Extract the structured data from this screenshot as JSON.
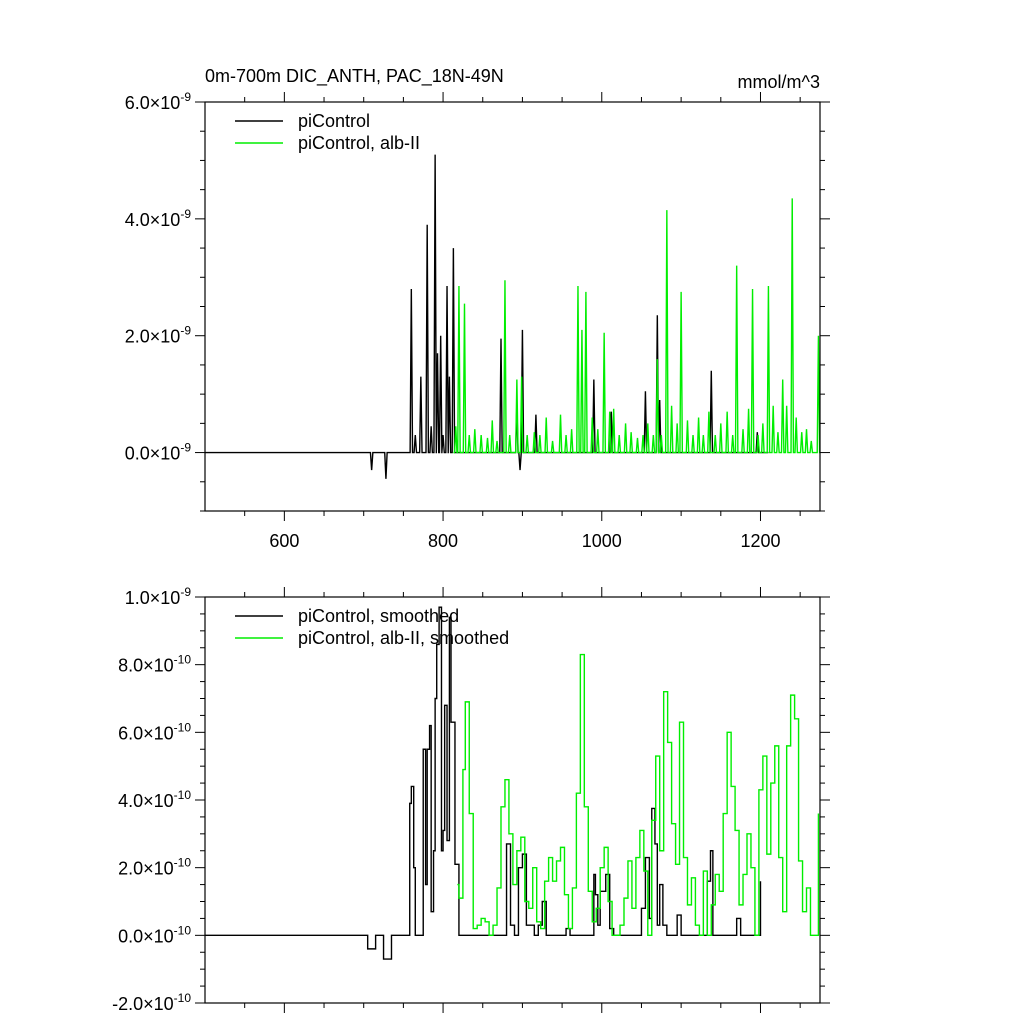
{
  "chart_data": [
    {
      "type": "line",
      "title": "0m-700m DIC_ANTH, PAC_18N-49N",
      "units": "mmol/m^3",
      "xlim": [
        500,
        1275
      ],
      "ylim": [
        -1e-09,
        6e-09
      ],
      "x_ticks": [
        600,
        800,
        1000,
        1200
      ],
      "x_tick_labels": [
        "600",
        "800",
        "1000",
        "1200"
      ],
      "y_tick_labels": [
        {
          "value": 6e-09,
          "mantissa": "6.0",
          "exponent": "-9"
        },
        {
          "value": 4e-09,
          "mantissa": "4.0",
          "exponent": "-9"
        },
        {
          "value": 2e-09,
          "mantissa": "2.0",
          "exponent": "-9"
        },
        {
          "value": 0.0,
          "mantissa": "0.0",
          "exponent": "-9"
        }
      ],
      "legend_position": "top-left",
      "series": [
        {
          "name": "piControl",
          "color": "#000000",
          "style": "spikes",
          "x": [
            710,
            728,
            760,
            765,
            772,
            780,
            785,
            790,
            793,
            797,
            800,
            805,
            808,
            813,
            873,
            893,
            897,
            900,
            917,
            990,
            1012,
            1055,
            1070,
            1073,
            1138,
            1196
          ],
          "y": [
            -3e-10,
            -4.5e-10,
            2.8e-09,
            3e-10,
            1.3e-09,
            3.9e-09,
            4.5e-10,
            5.1e-09,
            1.7e-09,
            2e-09,
            3e-10,
            2.85e-09,
            1.3e-09,
            3.5e-09,
            1.95e-09,
            8e-10,
            -3e-10,
            2.1e-09,
            6.5e-10,
            1.25e-09,
            7e-10,
            1.05e-09,
            2.35e-09,
            9e-10,
            1.4e-09,
            3.5e-10
          ]
        },
        {
          "name": "piControl, alb-II",
          "color": "#00ee00",
          "style": "spikes",
          "x": [
            816,
            820,
            827,
            833,
            840,
            848,
            856,
            862,
            868,
            878,
            884,
            893,
            899,
            906,
            915,
            922,
            930,
            938,
            948,
            955,
            962,
            970,
            975,
            980,
            988,
            995,
            1003,
            1010,
            1015,
            1022,
            1030,
            1037,
            1045,
            1052,
            1058,
            1065,
            1070,
            1075,
            1082,
            1088,
            1095,
            1100,
            1108,
            1115,
            1122,
            1128,
            1135,
            1143,
            1150,
            1158,
            1165,
            1170,
            1178,
            1185,
            1190,
            1197,
            1203,
            1210,
            1216,
            1222,
            1228,
            1233,
            1240,
            1245,
            1252,
            1258,
            1264,
            1273
          ],
          "y": [
            4.5e-10,
            2.85e-09,
            2.55e-09,
            3e-10,
            4e-10,
            3e-10,
            2.5e-10,
            5.5e-10,
            2e-10,
            2.95e-09,
            3e-10,
            1.25e-09,
            1.3e-09,
            3e-10,
            3.5e-10,
            3e-10,
            6e-10,
            2e-10,
            6.5e-10,
            3e-10,
            4e-10,
            2.85e-09,
            2.1e-09,
            2.75e-09,
            6e-10,
            4e-10,
            2.05e-09,
            7e-10,
            7.5e-10,
            3e-10,
            5e-10,
            3.5e-10,
            2.5e-10,
            3e-10,
            5e-10,
            3e-10,
            1.6e-09,
            3e-10,
            4.15e-09,
            8e-10,
            5e-10,
            2.75e-09,
            5.5e-10,
            3e-10,
            6e-10,
            3e-10,
            7e-10,
            3e-10,
            5e-10,
            7e-10,
            3e-10,
            3.2e-09,
            4e-10,
            7.5e-10,
            2.8e-09,
            3e-10,
            5e-10,
            2.85e-09,
            8e-10,
            3.5e-10,
            1.25e-09,
            8e-10,
            4.35e-09,
            6e-10,
            3.5e-10,
            4e-10,
            2e-10,
            2e-09
          ]
        }
      ]
    },
    {
      "type": "line",
      "xlim": [
        500,
        1275
      ],
      "ylim": [
        -2e-10,
        1e-09
      ],
      "x_ticks": [
        600,
        800,
        1000,
        1200
      ],
      "y_tick_labels": [
        {
          "value": 1e-09,
          "mantissa": "1.0",
          "exponent": "-9"
        },
        {
          "value": 8e-10,
          "mantissa": "8.0",
          "exponent": "-10"
        },
        {
          "value": 6e-10,
          "mantissa": "6.0",
          "exponent": "-10"
        },
        {
          "value": 4e-10,
          "mantissa": "4.0",
          "exponent": "-10"
        },
        {
          "value": 2e-10,
          "mantissa": "2.0",
          "exponent": "-10"
        },
        {
          "value": 0.0,
          "mantissa": "0.0",
          "exponent": "-10"
        },
        {
          "value": -2e-10,
          "mantissa": "-2.0",
          "exponent": "-10"
        }
      ],
      "legend_position": "top-left",
      "series": [
        {
          "name": "piControl, smoothed",
          "color": "#000000",
          "style": "step",
          "x": [
            500,
            705,
            710,
            715,
            720,
            725,
            730,
            735,
            755,
            758,
            760,
            763,
            765,
            772,
            775,
            778,
            780,
            783,
            785,
            788,
            790,
            792,
            795,
            798,
            800,
            802,
            805,
            807,
            808,
            810,
            812,
            815,
            820,
            880,
            885,
            890,
            895,
            900,
            905,
            910,
            915,
            920,
            925,
            930,
            950,
            955,
            960,
            965,
            990,
            992,
            995,
            998,
            1005,
            1010,
            1015,
            1020,
            1050,
            1055,
            1060,
            1063,
            1067,
            1070,
            1073,
            1077,
            1082,
            1090,
            1095,
            1100,
            1130,
            1133,
            1137,
            1140,
            1145,
            1165,
            1170,
            1175,
            1195,
            1200
          ],
          "y": [
            0,
            -4e-11,
            -4e-11,
            0.0,
            0.0,
            -7e-11,
            -7e-11,
            0.0,
            0.0,
            3.9e-10,
            4.4e-10,
            2e-10,
            0.0,
            0.0,
            5.5e-10,
            1.5e-10,
            5.5e-10,
            6.2e-10,
            7e-11,
            2.5e-10,
            7e-10,
            8.6e-10,
            9.7e-10,
            2.5e-10,
            3.1e-10,
            6.8e-10,
            2.8e-10,
            2.8e-10,
            9.4e-10,
            6.3e-10,
            6.3e-10,
            2.1e-10,
            0.0,
            2.7e-10,
            3e-11,
            0.0,
            2e-10,
            2.4e-10,
            3e-11,
            3e-11,
            0.0,
            3e-11,
            1e-10,
            0.0,
            0.0,
            2e-11,
            0.0,
            0.0,
            1.8e-10,
            1.2e-10,
            3e-11,
            1.3e-10,
            1.8e-10,
            2e-11,
            0.0,
            0.0,
            8e-11,
            2.3e-10,
            5e-11,
            3.75e-10,
            2.7e-10,
            3e-11,
            1.5e-10,
            3e-11,
            0.0,
            0.0,
            6e-11,
            0.0,
            0.0,
            1.6e-10,
            2.5e-10,
            0.0,
            0.0,
            0.0,
            5e-11,
            0.0,
            0.0,
            1.6e-10
          ]
        },
        {
          "name": "piControl, alb-II, smoothed",
          "color": "#00ee00",
          "style": "step",
          "x": [
            818,
            820,
            825,
            828,
            833,
            838,
            843,
            848,
            853,
            858,
            863,
            868,
            873,
            878,
            883,
            888,
            893,
            898,
            903,
            908,
            913,
            918,
            923,
            928,
            933,
            938,
            943,
            948,
            953,
            958,
            963,
            968,
            973,
            978,
            983,
            988,
            993,
            998,
            1003,
            1008,
            1013,
            1018,
            1023,
            1028,
            1033,
            1038,
            1043,
            1048,
            1053,
            1058,
            1063,
            1068,
            1073,
            1078,
            1083,
            1088,
            1093,
            1098,
            1103,
            1108,
            1113,
            1118,
            1123,
            1128,
            1133,
            1138,
            1143,
            1148,
            1153,
            1158,
            1163,
            1168,
            1173,
            1178,
            1183,
            1188,
            1193,
            1198,
            1203,
            1208,
            1213,
            1218,
            1223,
            1228,
            1233,
            1238,
            1243,
            1248,
            1253,
            1258,
            1263,
            1268,
            1273
          ],
          "y": [
            1.5e-10,
            1.1e-10,
            4.9e-10,
            6.9e-10,
            3.6e-10,
            2e-11,
            3e-11,
            5e-11,
            4e-11,
            0.0,
            3e-11,
            1.4e-10,
            3.8e-10,
            4.6e-10,
            3e-10,
            1.5e-10,
            2.5e-10,
            2.9e-10,
            1e-10,
            8e-11,
            2e-10,
            4e-11,
            2e-11,
            1.6e-10,
            2.3e-10,
            1.6e-10,
            2.2e-10,
            2.6e-10,
            1.2e-10,
            2e-11,
            1.4e-10,
            4.2e-10,
            8.3e-10,
            3.8e-10,
            1.3e-10,
            4e-11,
            8e-11,
            2e-10,
            2.6e-10,
            1e-10,
            0.0,
            0.0,
            3e-11,
            1.1e-10,
            2.2e-10,
            8e-11,
            2.3e-10,
            3.1e-10,
            1.9e-10,
            0.0,
            3.4e-10,
            5.3e-10,
            2.5e-10,
            7.2e-10,
            5.7e-10,
            3.3e-10,
            2.1e-10,
            6.3e-10,
            2.3e-10,
            9e-11,
            1.7e-10,
            3e-11,
            0.0,
            1.9e-10,
            0.0,
            9e-11,
            1.8e-10,
            1.3e-10,
            3.6e-10,
            6e-10,
            4.4e-10,
            3.1e-10,
            9e-11,
            1.8e-10,
            3e-10,
            2e-10,
            0.0,
            4.3e-10,
            5.3e-10,
            2.4e-10,
            4.5e-10,
            5.6e-10,
            2.3e-10,
            7e-11,
            5.6e-10,
            7.1e-10,
            6.4e-10,
            2.2e-10,
            7e-11,
            1.4e-10,
            0.0,
            0.0,
            3.6e-10
          ]
        }
      ]
    }
  ]
}
